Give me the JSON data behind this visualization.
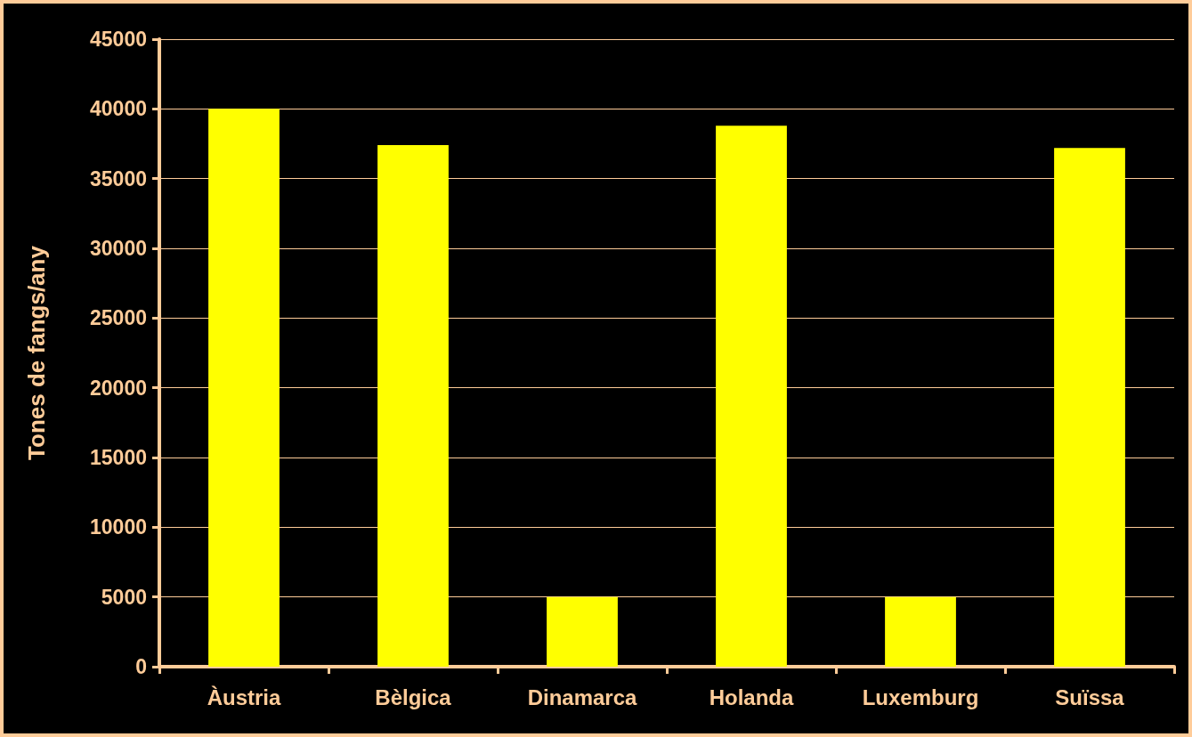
{
  "chart_data": {
    "type": "bar",
    "ylabel": "Tones de fangs/any",
    "categories": [
      "Àustria",
      "Bèlgica",
      "Dinamarca",
      "Holanda",
      "Luxemburg",
      "Suïssa"
    ],
    "values": [
      40000,
      37400,
      5000,
      38800,
      5000,
      37200
    ],
    "color": "#ffff00",
    "ylim": [
      0,
      45000
    ],
    "yticks": [
      0,
      5000,
      10000,
      15000,
      20000,
      25000,
      30000,
      35000,
      40000,
      45000
    ],
    "grid": "y"
  }
}
